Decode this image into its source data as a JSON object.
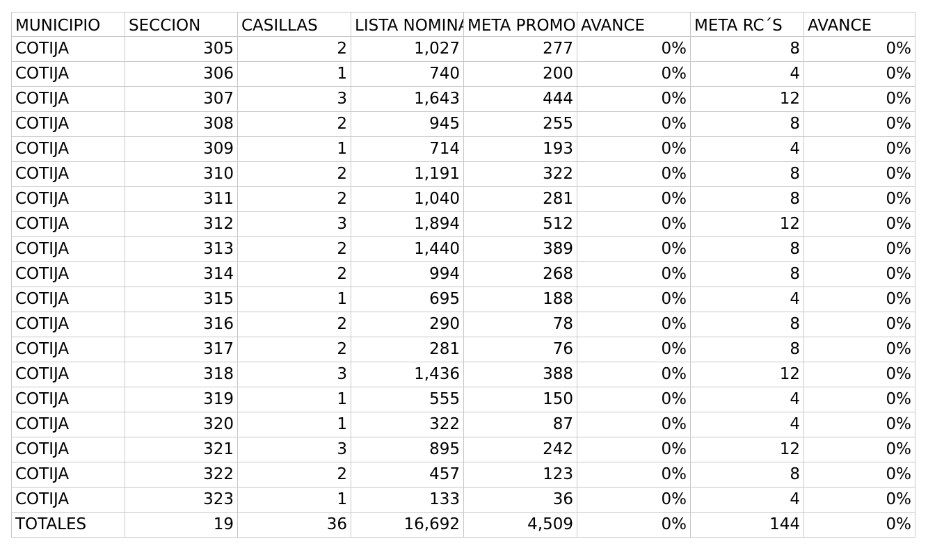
{
  "table": {
    "headers": [
      "MUNICIPIO",
      "SECCION",
      "CASILLAS",
      "LISTA NOMINAL",
      "META PROMOCION",
      "AVANCE",
      "META RC´S",
      "AVANCE"
    ],
    "rows": [
      [
        "COTIJA",
        "305",
        "2",
        "1,027",
        "277",
        "0%",
        "8",
        "0%"
      ],
      [
        "COTIJA",
        "306",
        "1",
        "740",
        "200",
        "0%",
        "4",
        "0%"
      ],
      [
        "COTIJA",
        "307",
        "3",
        "1,643",
        "444",
        "0%",
        "12",
        "0%"
      ],
      [
        "COTIJA",
        "308",
        "2",
        "945",
        "255",
        "0%",
        "8",
        "0%"
      ],
      [
        "COTIJA",
        "309",
        "1",
        "714",
        "193",
        "0%",
        "4",
        "0%"
      ],
      [
        "COTIJA",
        "310",
        "2",
        "1,191",
        "322",
        "0%",
        "8",
        "0%"
      ],
      [
        "COTIJA",
        "311",
        "2",
        "1,040",
        "281",
        "0%",
        "8",
        "0%"
      ],
      [
        "COTIJA",
        "312",
        "3",
        "1,894",
        "512",
        "0%",
        "12",
        "0%"
      ],
      [
        "COTIJA",
        "313",
        "2",
        "1,440",
        "389",
        "0%",
        "8",
        "0%"
      ],
      [
        "COTIJA",
        "314",
        "2",
        "994",
        "268",
        "0%",
        "8",
        "0%"
      ],
      [
        "COTIJA",
        "315",
        "1",
        "695",
        "188",
        "0%",
        "4",
        "0%"
      ],
      [
        "COTIJA",
        "316",
        "2",
        "290",
        "78",
        "0%",
        "8",
        "0%"
      ],
      [
        "COTIJA",
        "317",
        "2",
        "281",
        "76",
        "0%",
        "8",
        "0%"
      ],
      [
        "COTIJA",
        "318",
        "3",
        "1,436",
        "388",
        "0%",
        "12",
        "0%"
      ],
      [
        "COTIJA",
        "319",
        "1",
        "555",
        "150",
        "0%",
        "4",
        "0%"
      ],
      [
        "COTIJA",
        "320",
        "1",
        "322",
        "87",
        "0%",
        "4",
        "0%"
      ],
      [
        "COTIJA",
        "321",
        "3",
        "895",
        "242",
        "0%",
        "12",
        "0%"
      ],
      [
        "COTIJA",
        "322",
        "2",
        "457",
        "123",
        "0%",
        "8",
        "0%"
      ],
      [
        "COTIJA",
        "323",
        "1",
        "133",
        "36",
        "0%",
        "4",
        "0%"
      ]
    ],
    "totals": [
      "TOTALES",
      "19",
      "36",
      "16,692",
      "4,509",
      "0%",
      "144",
      "0%"
    ]
  },
  "colors": {
    "grid_line": "#c7c7c7",
    "text": "#000000",
    "background": "#ffffff"
  }
}
